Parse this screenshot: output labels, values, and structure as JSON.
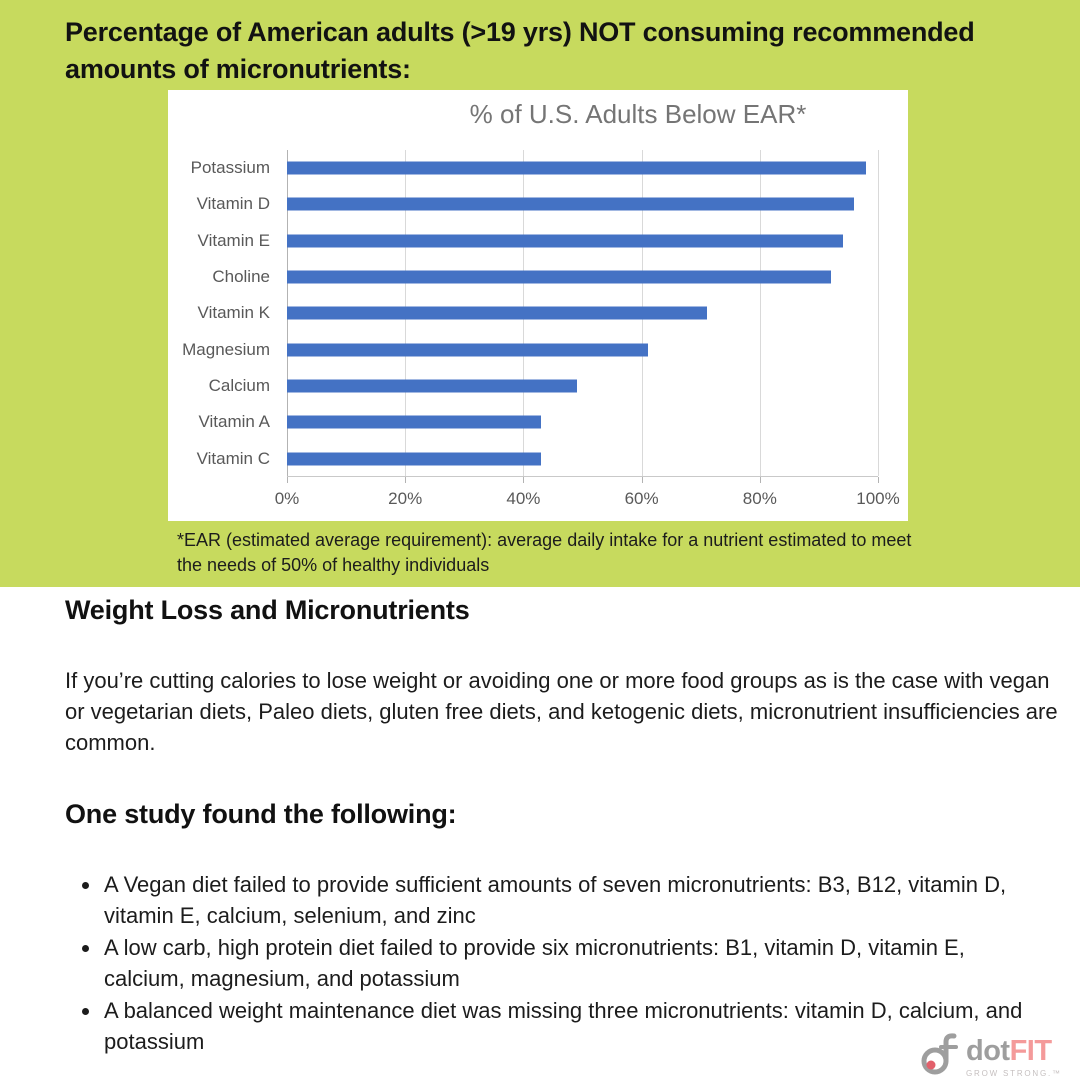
{
  "page": {
    "title": "Percentage of American adults (>19 yrs) NOT consuming recommended amounts of micronutrients:",
    "footnote": "*EAR (estimated average requirement): average daily intake for a nutrient estimated to meet the needs of 50% of healthy individuals"
  },
  "chart_data": {
    "type": "bar",
    "orientation": "horizontal",
    "title": "% of U.S. Adults Below EAR*",
    "categories": [
      "Potassium",
      "Vitamin D",
      "Vitamin E",
      "Choline",
      "Vitamin K",
      "Magnesium",
      "Calcium",
      "Vitamin A",
      "Vitamin C"
    ],
    "values": [
      98,
      96,
      94,
      92,
      71,
      61,
      49,
      43,
      43
    ],
    "x_ticks": [
      "0%",
      "20%",
      "40%",
      "60%",
      "80%",
      "100%"
    ],
    "xlim": [
      0,
      100
    ],
    "xlabel": "",
    "ylabel": "",
    "grid": true,
    "legend": "none",
    "bar_color": "#4472c4"
  },
  "sections": {
    "weight_loss": {
      "heading": "Weight Loss and Micronutrients",
      "paragraph": "If you’re cutting calories to lose weight or avoiding one or more food groups as is the case with vegan or vegetarian diets, Paleo diets, gluten free diets, and ketogenic diets, micronutrient insufficiencies are common."
    },
    "study": {
      "heading": "One study found the following:",
      "bullets": [
        "A Vegan diet failed to provide sufficient amounts of seven micronutrients: B3, B12, vitamin D, vitamin E, calcium, selenium, and zinc",
        "A low carb, high protein diet failed to provide six micronutrients: B1, vitamin D, vitamin E, calcium, magnesium, and potassium",
        "A balanced weight maintenance diet was missing three micronutrients: vitamin D, calcium, and potassium"
      ]
    }
  },
  "logo": {
    "brand_gray": "dot",
    "brand_accent": "FIT",
    "tagline": "GROW STRONG.™"
  },
  "colors": {
    "background_green": "#c7da5e",
    "bar_blue": "#4472c4",
    "accent_pink": "#f49a9a",
    "chart_text_gray": "#595959"
  }
}
